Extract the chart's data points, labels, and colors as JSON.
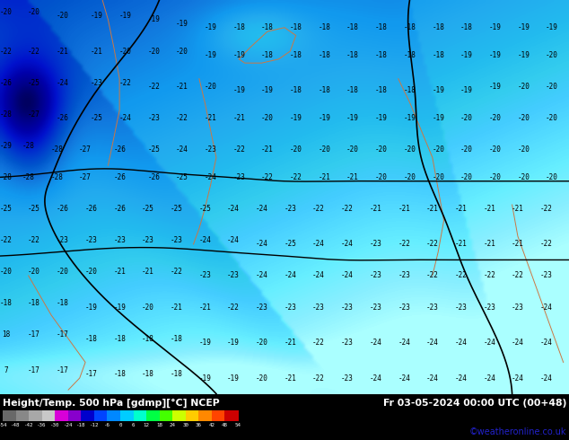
{
  "title_left": "Height/Temp. 500 hPa [gdmp][°C] NCEP",
  "title_right": "Fr 03-05-2024 00:00 UTC (00+48)",
  "credit": "©weatheronline.co.uk",
  "colorbar_ticks": [
    -54,
    -48,
    -42,
    -36,
    -30,
    -24,
    -18,
    -12,
    -6,
    0,
    6,
    12,
    18,
    24,
    30,
    36,
    42,
    48,
    54
  ],
  "colorbar_colors": [
    "#686868",
    "#888888",
    "#a8a8a8",
    "#c8c8c8",
    "#d800d8",
    "#8800cc",
    "#0000cc",
    "#0044ff",
    "#0088ff",
    "#00ccff",
    "#00ffcc",
    "#00ff44",
    "#44ff00",
    "#ccff00",
    "#ffcc00",
    "#ff8800",
    "#ff4400",
    "#cc0000",
    "#880000"
  ],
  "bg_cyan": "#00c8ff",
  "bg_medium_blue": "#0066cc",
  "bg_dark_blue": "#0033aa",
  "bg_very_dark": "#000088",
  "bg_deepest": "#000055",
  "bg_light_cyan": "#40e0ff",
  "text_color": "#000000",
  "credit_color": "#2222cc",
  "fig_width": 6.34,
  "fig_height": 4.9,
  "dpi": 100
}
